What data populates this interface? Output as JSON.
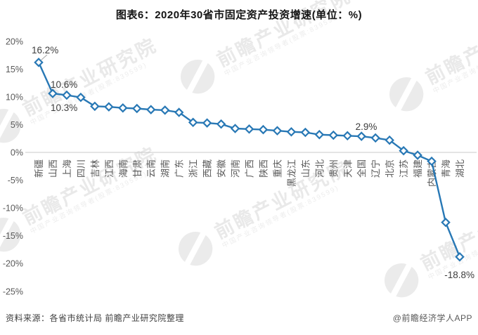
{
  "title": "图表6：2020年30省市固定资产投资增速(单位：%)",
  "watermark": {
    "text": "前瞻产业研究院",
    "subtext": "中国产业咨询领导者(股票:839599)"
  },
  "footer": {
    "source": "资料来源：各省市统计局 前瞻产业研究院整理",
    "credit": "@前瞻经济学人APP"
  },
  "chart_data": {
    "type": "line",
    "title": "图表6：2020年30省市固定资产投资增速(单位：%)",
    "unit": "%",
    "categories": [
      "新疆",
      "山西",
      "上海",
      "四川",
      "吉林",
      "江西",
      "海南",
      "甘肃",
      "云南",
      "湖南",
      "广东",
      "浙江",
      "西藏",
      "安徽",
      "河南",
      "广西",
      "陕西",
      "重庆",
      "黑龙江",
      "山东",
      "河北",
      "贵州",
      "天津",
      "全国",
      "辽宁",
      "北京",
      "江苏",
      "福建",
      "内蒙古",
      "青海",
      "湖北"
    ],
    "values": [
      16.2,
      10.6,
      10.3,
      9.9,
      8.3,
      8.2,
      8.0,
      7.9,
      7.7,
      7.6,
      7.2,
      5.4,
      5.3,
      5.1,
      4.3,
      4.2,
      4.1,
      3.9,
      3.7,
      3.6,
      3.2,
      3.1,
      3.0,
      2.9,
      2.6,
      2.2,
      0.3,
      -0.5,
      -1.6,
      -12.6,
      -18.8
    ],
    "annotations": [
      {
        "index": 0,
        "label": "16.2%"
      },
      {
        "index": 1,
        "label": "10.6%"
      },
      {
        "index": 2,
        "label": "10.3%"
      },
      {
        "index": 23,
        "label": "2.9%"
      },
      {
        "index": 30,
        "label": "-18.8%"
      }
    ],
    "y_ticks": [
      "20%",
      "15%",
      "10%",
      "5%",
      "0%",
      "-5%",
      "-10%",
      "-15%",
      "-20%",
      "-25%"
    ],
    "ylim": [
      -25,
      20
    ],
    "xlabel": "",
    "ylabel": "",
    "grid": "zero-line-only",
    "legend": "none",
    "marker": "diamond",
    "colors": {
      "line": "#2878b5",
      "marker_fill": "#ffffff",
      "marker_stroke": "#2878b5",
      "grid_line": "#c9c9c9",
      "axis_text": "#595959",
      "annotation_text": "#3d3d3d",
      "leader_line": "#a6a6a6"
    }
  }
}
